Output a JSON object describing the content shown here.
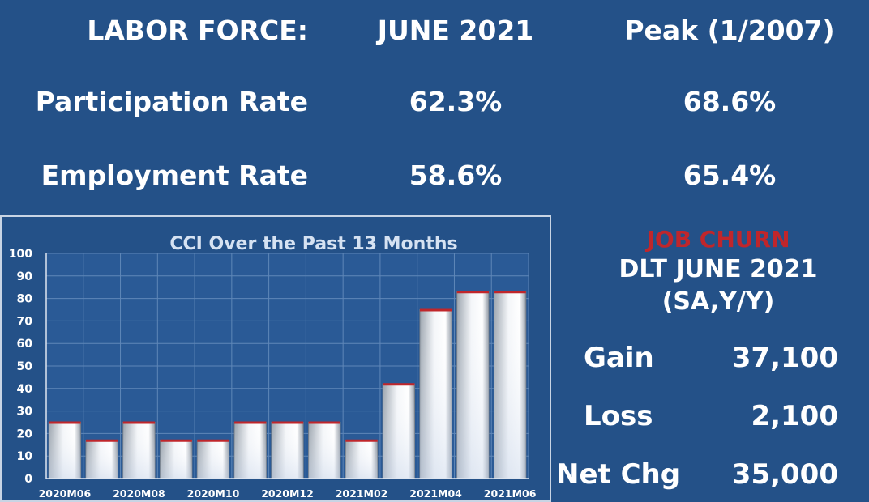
{
  "table": {
    "header": {
      "label": "LABOR FORCE:",
      "june": "JUNE 2021",
      "peak": "Peak (1/2007)"
    },
    "rows": [
      {
        "label": "Participation Rate",
        "june": "62.3%",
        "peak": "68.6%"
      },
      {
        "label": "Employment Rate",
        "june": "58.6%",
        "peak": "65.4%"
      }
    ]
  },
  "job_churn": {
    "title": "JOB CHURN",
    "subtitle_line1": "DLT JUNE 2021",
    "subtitle_line2": "(SA,Y/Y)",
    "rows": [
      {
        "label": "Gain",
        "value": "37,100"
      },
      {
        "label": "Loss",
        "value": "2,100"
      },
      {
        "label": "Net Chg",
        "value": "35,000"
      }
    ],
    "title_color": "#c0262b"
  },
  "colors": {
    "background": "#245188",
    "bar_top": "#c0262b"
  },
  "chart_data": {
    "type": "bar",
    "title": "CCI Over the Past 13 Months",
    "categories": [
      "2020M06",
      "2020M07",
      "2020M08",
      "2020M09",
      "2020M10",
      "2020M11",
      "2020M12",
      "2021M01",
      "2021M02",
      "2021M03",
      "2021M04",
      "2021M05",
      "2021M06"
    ],
    "x_tick_labels": [
      "2020M06",
      "2020M08",
      "2020M10",
      "2020M12",
      "2021M02",
      "2021M04",
      "2021M06"
    ],
    "values": [
      25,
      17,
      25,
      17,
      17,
      25,
      25,
      25,
      17,
      42,
      75,
      83,
      83
    ],
    "ylim": [
      0,
      100
    ],
    "y_ticks": [
      0,
      10,
      20,
      30,
      40,
      50,
      60,
      70,
      80,
      90,
      100
    ],
    "grid": true,
    "xlabel": "",
    "ylabel": ""
  }
}
